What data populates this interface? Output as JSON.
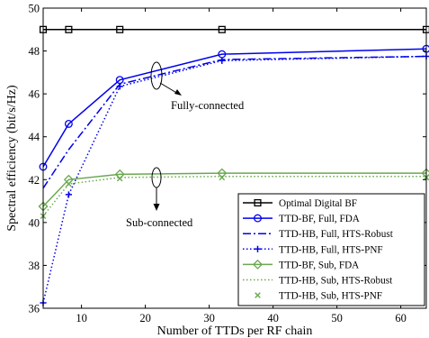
{
  "chart_data": {
    "type": "line",
    "xlabel": "Number of TTDs per RF chain",
    "ylabel": "Spectral efficiency (bit/s/Hz)",
    "xlim": [
      4,
      64
    ],
    "ylim": [
      36,
      50
    ],
    "x_ticks": [
      10,
      20,
      30,
      40,
      50,
      60
    ],
    "y_ticks": [
      36,
      38,
      40,
      42,
      44,
      46,
      48,
      50
    ],
    "x_tick_labels": [
      "10",
      "20",
      "30",
      "40",
      "50",
      "60"
    ],
    "y_tick_labels": [
      "36",
      "38",
      "40",
      "42",
      "44",
      "46",
      "48",
      "50"
    ],
    "grid": false,
    "legend_position": "lower-right",
    "x": [
      4,
      8,
      16,
      32,
      64
    ],
    "series": [
      {
        "name": "Optimal Digital BF",
        "values": [
          49.0,
          49.0,
          49.0,
          49.0,
          49.0
        ],
        "color": "#000000",
        "dash": "solid",
        "marker": "square"
      },
      {
        "name": "TTD-BF, Full, FDA",
        "values": [
          42.6,
          44.6,
          46.65,
          47.85,
          48.1
        ],
        "color": "#0000ee",
        "dash": "solid",
        "marker": "circle"
      },
      {
        "name": "TTD-HB, Full, HTS-Robust",
        "values": [
          41.6,
          43.4,
          46.45,
          47.6,
          47.75
        ],
        "color": "#0000ee",
        "dash": "dashdot",
        "marker": "none"
      },
      {
        "name": "TTD-HB, Full, HTS-PNF",
        "values": [
          36.25,
          41.3,
          46.35,
          47.55,
          47.75
        ],
        "color": "#0000ee",
        "dash": "dotted",
        "marker": "plus"
      },
      {
        "name": "TTD-BF, Sub, FDA",
        "values": [
          40.75,
          42.0,
          42.25,
          42.3,
          42.3
        ],
        "color": "#6aa84f",
        "dash": "solid",
        "marker": "diamond"
      },
      {
        "name": "TTD-HB, Sub, HTS-Robust",
        "values": [
          40.3,
          41.8,
          42.1,
          42.15,
          42.15
        ],
        "color": "#6aa84f",
        "dash": "dotted",
        "marker": "none"
      },
      {
        "name": "TTD-HB, Sub, HTS-PNF",
        "values": [
          40.3,
          41.8,
          42.05,
          42.1,
          42.1
        ],
        "color": "#6aa84f",
        "dash": "none",
        "marker": "x"
      }
    ],
    "annotations": [
      {
        "text": "Fully-connected"
      },
      {
        "text": "Sub-connected"
      }
    ]
  }
}
